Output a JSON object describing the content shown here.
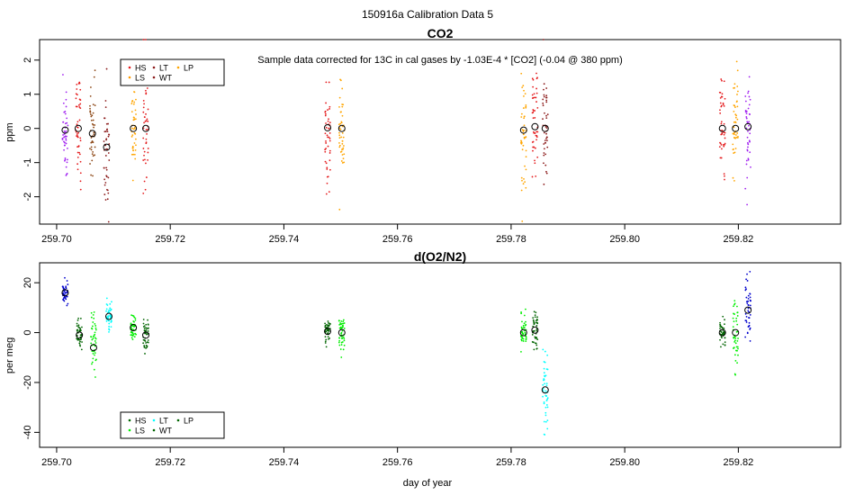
{
  "figure_title": "150916a   Calibration Data 5",
  "xlabel": "day of year",
  "chart_data": [
    {
      "type": "scatter",
      "title": "CO2",
      "annotation": "Sample data corrected for 13C in cal gases by -1.03E-4 * [CO2] (-0.04 @ 380 ppm)",
      "ylabel": "ppm",
      "xlim": [
        259.697,
        259.838
      ],
      "ylim": [
        -2.8,
        2.6
      ],
      "xticks": [
        259.7,
        259.72,
        259.74,
        259.76,
        259.78,
        259.8,
        259.82
      ],
      "xtick_labels": [
        "259.70",
        "259.72",
        "259.74",
        "259.76",
        "259.78",
        "259.80",
        "259.82"
      ],
      "yticks": [
        -2,
        -1,
        0,
        1,
        2
      ],
      "ytick_labels": [
        "-2",
        "-1",
        "0",
        "1",
        "2"
      ],
      "legend": [
        {
          "label": "HS",
          "color": "#e41a1c"
        },
        {
          "label": "LS",
          "color": "#ff9900"
        },
        {
          "label": "LT",
          "color": "#8b1a1a"
        },
        {
          "label": "WT",
          "color": "#8b1a1a"
        },
        {
          "label": "LP",
          "color": "#ffa500"
        }
      ],
      "groups": [
        {
          "x": 259.7015,
          "mean": -0.05,
          "sd": 0.8,
          "color": "#a020f0",
          "n": 45
        },
        {
          "x": 259.7038,
          "mean": 0.0,
          "sd": 0.9,
          "color": "#e41a1c",
          "n": 45
        },
        {
          "x": 259.7063,
          "mean": -0.15,
          "sd": 0.7,
          "color": "#8b4513",
          "n": 45
        },
        {
          "x": 259.7088,
          "mean": -0.55,
          "sd": 0.9,
          "color": "#8b1a1a",
          "n": 45
        },
        {
          "x": 259.7135,
          "mean": 0.0,
          "sd": 0.7,
          "color": "#ffa500",
          "n": 45
        },
        {
          "x": 259.7157,
          "mean": 0.0,
          "sd": 0.9,
          "color": "#e41a1c",
          "n": 45
        },
        {
          "x": 259.7477,
          "mean": 0.02,
          "sd": 0.8,
          "color": "#e41a1c",
          "n": 45
        },
        {
          "x": 259.7502,
          "mean": 0.0,
          "sd": 0.7,
          "color": "#ffa500",
          "n": 45
        },
        {
          "x": 259.7822,
          "mean": -0.05,
          "sd": 0.8,
          "color": "#ffa500",
          "n": 45
        },
        {
          "x": 259.7842,
          "mean": 0.05,
          "sd": 0.8,
          "color": "#e41a1c",
          "n": 45
        },
        {
          "x": 259.786,
          "mean": 0.0,
          "sd": 0.8,
          "color": "#8b1a1a",
          "n": 45
        },
        {
          "x": 259.8172,
          "mean": 0.0,
          "sd": 0.9,
          "color": "#e41a1c",
          "n": 45
        },
        {
          "x": 259.8195,
          "mean": 0.0,
          "sd": 0.8,
          "color": "#ffa500",
          "n": 45
        },
        {
          "x": 259.8217,
          "mean": 0.05,
          "sd": 0.8,
          "color": "#a020f0",
          "n": 45
        }
      ]
    },
    {
      "type": "scatter",
      "title": "d(O2/N2)",
      "ylabel": "per meg",
      "xlim": [
        259.697,
        259.838
      ],
      "ylim": [
        -46,
        28
      ],
      "xticks": [
        259.7,
        259.72,
        259.74,
        259.76,
        259.78,
        259.8,
        259.82
      ],
      "xtick_labels": [
        "259.70",
        "259.72",
        "259.74",
        "259.76",
        "259.78",
        "259.80",
        "259.82"
      ],
      "yticks": [
        -40,
        -20,
        0,
        20
      ],
      "ytick_labels": [
        "-40",
        "-20",
        "0",
        "20"
      ],
      "legend": [
        {
          "label": "HS",
          "color": "#006400"
        },
        {
          "label": "LS",
          "color": "#00ee00"
        },
        {
          "label": "LT",
          "color": "#00ffff"
        },
        {
          "label": "WT",
          "color": "#006400"
        },
        {
          "label": "LP",
          "color": "#006400"
        }
      ],
      "groups": [
        {
          "x": 259.7015,
          "mean": 16,
          "sd": 2.5,
          "color": "#0000cd",
          "n": 45
        },
        {
          "x": 259.704,
          "mean": -1,
          "sd": 2.5,
          "color": "#006400",
          "n": 45
        },
        {
          "x": 259.7065,
          "mean": -6,
          "sd": 7,
          "color": "#00ee00",
          "n": 45
        },
        {
          "x": 259.7092,
          "mean": 6.5,
          "sd": 3,
          "color": "#00ffff",
          "n": 45
        },
        {
          "x": 259.7135,
          "mean": 2,
          "sd": 3,
          "color": "#00ee00",
          "n": 45
        },
        {
          "x": 259.7157,
          "mean": -1,
          "sd": 3.5,
          "color": "#006400",
          "n": 45
        },
        {
          "x": 259.7477,
          "mean": 0.5,
          "sd": 2.5,
          "color": "#006400",
          "n": 45
        },
        {
          "x": 259.7502,
          "mean": 0,
          "sd": 3.5,
          "color": "#00ee00",
          "n": 45
        },
        {
          "x": 259.7822,
          "mean": 0,
          "sd": 4,
          "color": "#00ee00",
          "n": 45
        },
        {
          "x": 259.7842,
          "mean": 1,
          "sd": 4,
          "color": "#006400",
          "n": 45
        },
        {
          "x": 259.786,
          "mean": -23,
          "sd": 8,
          "color": "#00ffff",
          "n": 45
        },
        {
          "x": 259.8172,
          "mean": 0,
          "sd": 3,
          "color": "#006400",
          "n": 45
        },
        {
          "x": 259.8195,
          "mean": 0,
          "sd": 7,
          "color": "#00ee00",
          "n": 45
        },
        {
          "x": 259.8217,
          "mean": 9,
          "sd": 7,
          "color": "#0000cd",
          "n": 45
        }
      ]
    }
  ]
}
